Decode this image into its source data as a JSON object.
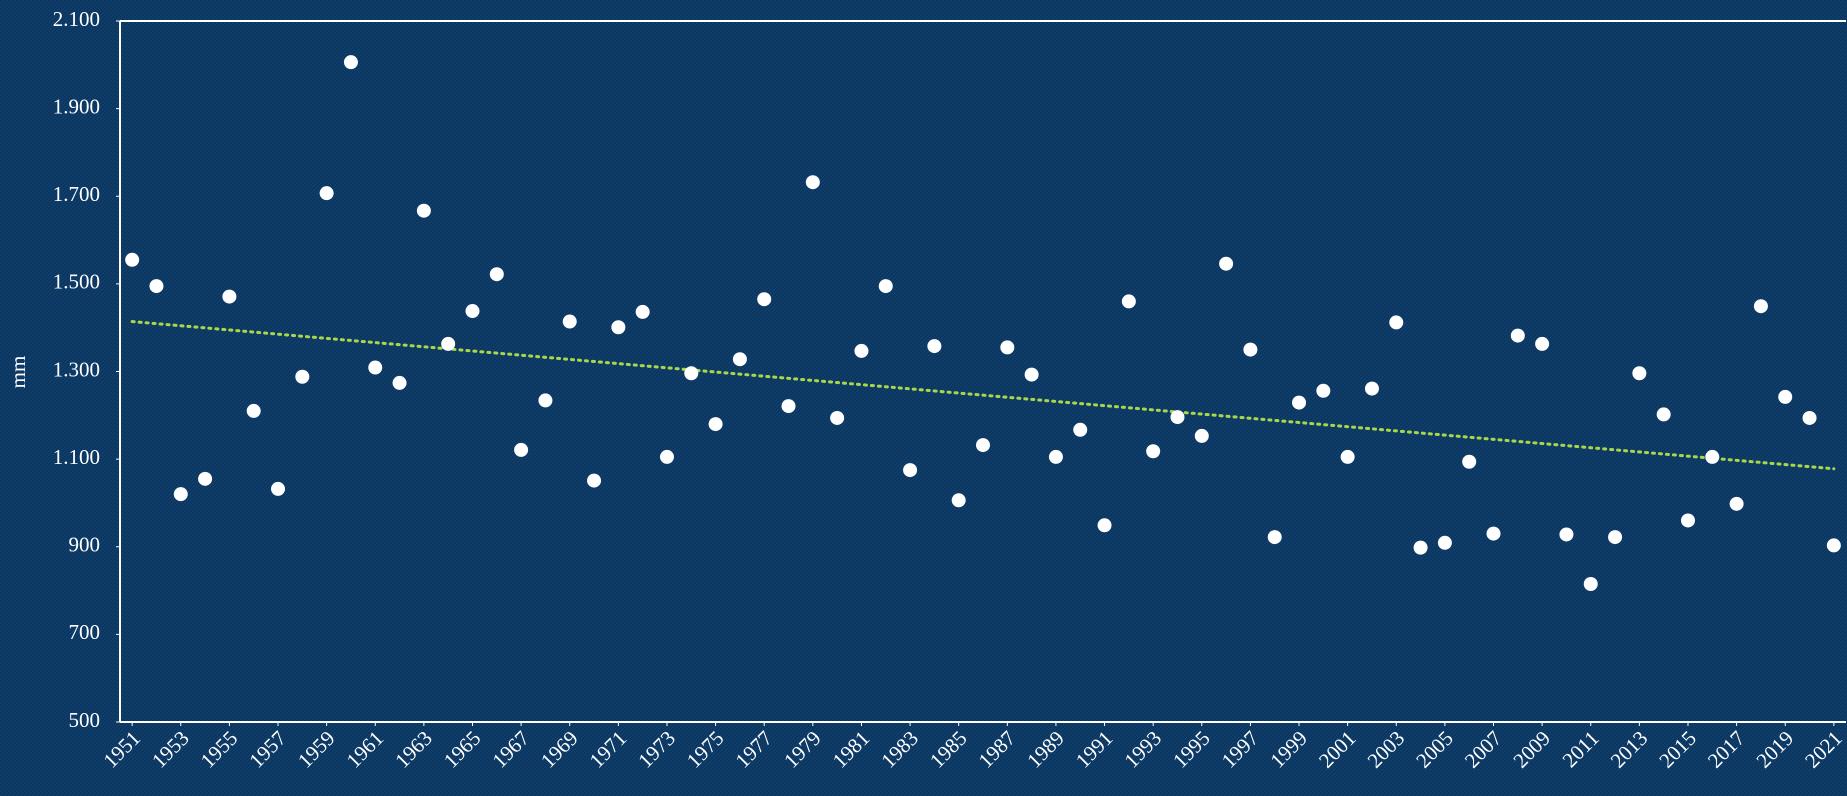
{
  "chart_data": {
    "type": "scatter",
    "y_label": "mm",
    "x": [
      1951,
      1952,
      1953,
      1954,
      1955,
      1956,
      1957,
      1958,
      1959,
      1960,
      1961,
      1962,
      1963,
      1964,
      1965,
      1966,
      1967,
      1968,
      1969,
      1970,
      1971,
      1972,
      1973,
      1974,
      1975,
      1976,
      1977,
      1978,
      1979,
      1980,
      1981,
      1982,
      1983,
      1984,
      1985,
      1986,
      1987,
      1988,
      1989,
      1990,
      1991,
      1992,
      1993,
      1994,
      1995,
      1996,
      1997,
      1998,
      1999,
      2000,
      2001,
      2002,
      2003,
      2004,
      2005,
      2006,
      2007,
      2008,
      2009,
      2010,
      2011,
      2012,
      2013,
      2014,
      2015,
      2016,
      2017,
      2018,
      2019,
      2020,
      2021
    ],
    "values": [
      1555,
      1495,
      1020,
      1055,
      1471,
      1210,
      1032,
      1288,
      1707,
      2006,
      1309,
      1274,
      1667,
      1363,
      1438,
      1522,
      1121,
      1234,
      1414,
      1051,
      1401,
      1436,
      1105,
      1296,
      1180,
      1328,
      1465,
      1221,
      1732,
      1194,
      1347,
      1495,
      1075,
      1358,
      1006,
      1132,
      1355,
      1293,
      1105,
      1167,
      949,
      1460,
      1118,
      1196,
      1153,
      1546,
      1350,
      922,
      1229,
      1256,
      1105,
      1261,
      1412,
      898,
      909,
      1094,
      930,
      1382,
      1363,
      928,
      815,
      922,
      1296,
      1202,
      960,
      1105,
      998,
      1449,
      1242,
      1194,
      903
    ],
    "color": "#ffffff",
    "trendline": {
      "x": [
        1951,
        2021
      ],
      "values": [
        1414,
        1078
      ],
      "color": "#a8d84a"
    },
    "xlim": [
      1950.5,
      2021.5
    ],
    "xticks": [
      1951,
      1953,
      1955,
      1957,
      1959,
      1961,
      1963,
      1965,
      1967,
      1969,
      1971,
      1973,
      1975,
      1977,
      1979,
      1981,
      1983,
      1985,
      1987,
      1989,
      1991,
      1993,
      1995,
      1997,
      1999,
      2001,
      2003,
      2005,
      2007,
      2009,
      2011,
      2013,
      2015,
      2017,
      2019,
      2021
    ],
    "ylim": [
      500,
      2100
    ],
    "yticks": [
      500,
      700,
      900,
      {
        "value": 1100,
        "label": "1.100"
      },
      {
        "value": 1300,
        "label": "1.300"
      },
      {
        "value": 1500,
        "label": "1.500"
      },
      {
        "value": 1700,
        "label": "1.700"
      },
      {
        "value": 1900,
        "label": "1.900"
      },
      {
        "value": 2100,
        "label": "2.100"
      }
    ]
  }
}
